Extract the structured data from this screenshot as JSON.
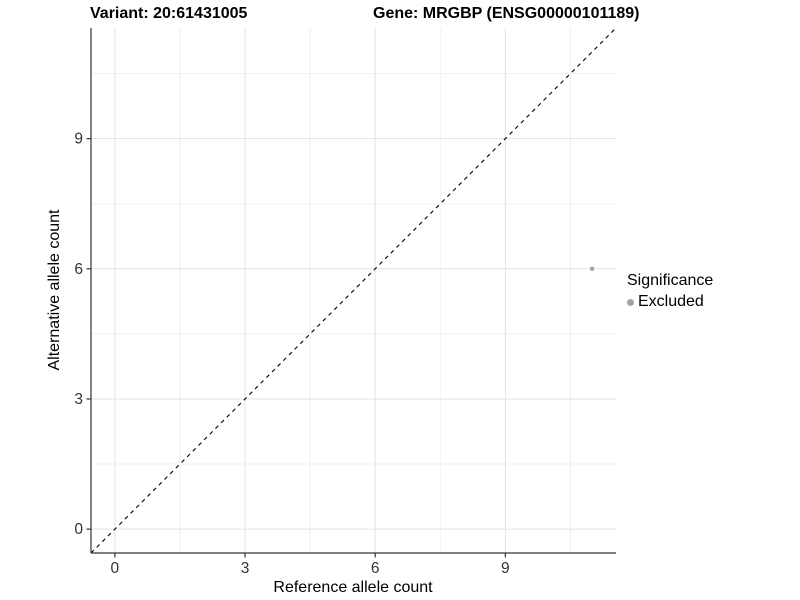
{
  "titles": {
    "variant": "Variant: 20:61431005",
    "gene": "Gene: MRGBP (ENSG00000101189)"
  },
  "axes": {
    "x_label": "Reference allele count",
    "y_label": "Alternative allele count"
  },
  "legend": {
    "title": "Significance",
    "items": [
      {
        "label": "Excluded",
        "color": "#a3a3a3"
      }
    ]
  },
  "colors": {
    "axis_line": "#333333",
    "tick_label": "#333333",
    "grid_major": "#e3e3e3",
    "grid_minor": "#f0f0f0",
    "reference_line": "#000000",
    "point": "#a8a8a8",
    "background": "#ffffff"
  },
  "chart_data": {
    "type": "scatter",
    "title_left": "Variant: 20:61431005",
    "title_right": "Gene: MRGBP (ENSG00000101189)",
    "xlabel": "Reference allele count",
    "ylabel": "Alternative allele count",
    "xlim": [
      -0.55,
      11.55
    ],
    "ylim": [
      -0.55,
      11.55
    ],
    "x_ticks": [
      0,
      3,
      6,
      9
    ],
    "y_ticks": [
      0,
      3,
      6,
      9
    ],
    "x_minor_ticks": [
      1.5,
      4.5,
      7.5,
      10.5
    ],
    "y_minor_ticks": [
      1.5,
      4.5,
      7.5,
      10.5
    ],
    "grid": true,
    "legend_position": "right",
    "reference_line": {
      "slope": 1,
      "intercept": 0,
      "style": "dashed"
    },
    "series": [
      {
        "name": "Excluded",
        "color": "#a8a8a8",
        "points": [
          {
            "x": 11,
            "y": 6
          }
        ]
      }
    ]
  }
}
